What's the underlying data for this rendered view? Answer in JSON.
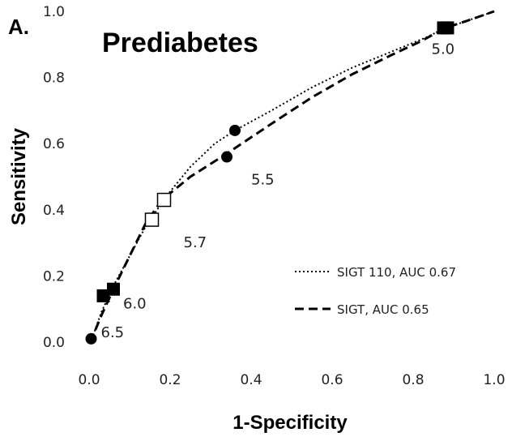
{
  "chart_data": {
    "type": "line",
    "panel_label": "A.",
    "title": "Prediabetes",
    "xlabel": "1-Specificity",
    "ylabel": "Sensitivity",
    "xlim": [
      0,
      1
    ],
    "ylim": [
      0,
      1
    ],
    "xticks": [
      "0.0",
      "0.2",
      "0.4",
      "0.6",
      "0.8",
      "1.0"
    ],
    "yticks": [
      "0.0",
      "0.2",
      "0.4",
      "0.6",
      "0.8",
      "1.0"
    ],
    "grid": false,
    "legend_position": "bottom-right",
    "series": [
      {
        "name": "SIGT 110, AUC 0.67",
        "style": "dotted",
        "x": [
          0.0,
          0.01,
          0.03,
          0.06,
          0.1,
          0.14,
          0.19,
          0.25,
          0.31,
          0.36,
          0.45,
          0.55,
          0.65,
          0.75,
          0.83,
          0.88,
          0.93,
          1.0
        ],
        "y": [
          0.0,
          0.02,
          0.09,
          0.17,
          0.26,
          0.35,
          0.44,
          0.53,
          0.6,
          0.64,
          0.7,
          0.77,
          0.83,
          0.88,
          0.92,
          0.95,
          0.97,
          1.0
        ]
      },
      {
        "name": "SIGT, AUC 0.65",
        "style": "dashed",
        "x": [
          0.0,
          0.01,
          0.03,
          0.06,
          0.1,
          0.14,
          0.18,
          0.25,
          0.34,
          0.45,
          0.55,
          0.65,
          0.75,
          0.82,
          0.88,
          0.93,
          1.0
        ],
        "y": [
          0.0,
          0.02,
          0.08,
          0.16,
          0.26,
          0.36,
          0.43,
          0.5,
          0.57,
          0.66,
          0.74,
          0.81,
          0.87,
          0.91,
          0.95,
          0.97,
          1.0
        ]
      }
    ],
    "markers": [
      {
        "x": 0.005,
        "y": 0.01,
        "shape": "circle"
      },
      {
        "x": 0.035,
        "y": 0.14,
        "shape": "filled-square"
      },
      {
        "x": 0.06,
        "y": 0.16,
        "shape": "filled-square"
      },
      {
        "x": 0.155,
        "y": 0.37,
        "shape": "open-square"
      },
      {
        "x": 0.185,
        "y": 0.43,
        "shape": "open-square"
      },
      {
        "x": 0.34,
        "y": 0.56,
        "shape": "circle"
      },
      {
        "x": 0.36,
        "y": 0.64,
        "shape": "circle"
      },
      {
        "x": 0.875,
        "y": 0.95,
        "shape": "filled-square"
      },
      {
        "x": 0.885,
        "y": 0.95,
        "shape": "filled-square"
      }
    ],
    "annotations": [
      {
        "text": "6.5",
        "x": 0.005,
        "y": 0.01
      },
      {
        "text": "6.0",
        "x": 0.06,
        "y": 0.16
      },
      {
        "text": "5.7",
        "x": 0.185,
        "y": 0.37
      },
      {
        "text": "5.5",
        "x": 0.36,
        "y": 0.56
      },
      {
        "text": "5.0",
        "x": 0.885,
        "y": 0.95
      }
    ]
  }
}
